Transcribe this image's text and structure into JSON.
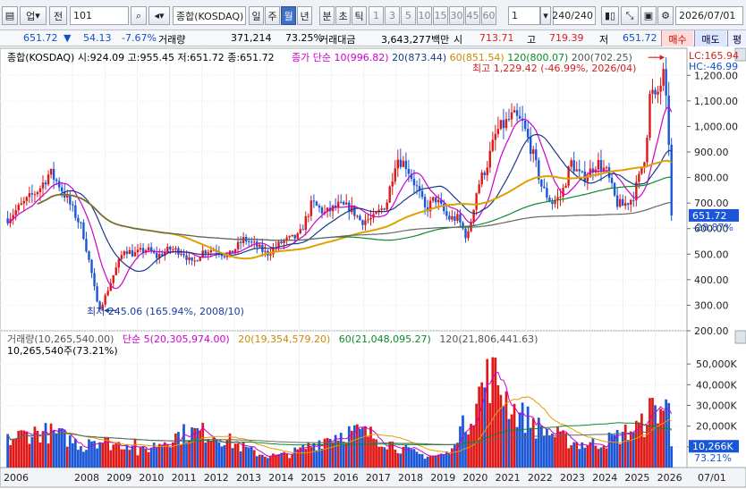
{
  "toolbar": {
    "market_select": "업",
    "prev_label": "전",
    "code_input": "101",
    "name_display": "종합(KOSDAQ)",
    "period_tabs": [
      "일",
      "주",
      "월",
      "년"
    ],
    "period_selected": "월",
    "interval_tabs": [
      "분",
      "초",
      "틱"
    ],
    "minute_buttons": [
      "1",
      "3",
      "5",
      "10",
      "15",
      "30",
      "45",
      "60"
    ],
    "unit_value": "1",
    "count_value": "240",
    "count_total": "/240",
    "date_value": "2026/07/01"
  },
  "infobar": {
    "price": "651.72",
    "change": "54.13",
    "change_pct": "-7.67%",
    "volume_label": "거래량",
    "volume": "371,214",
    "volume_ratio": "73.25%",
    "amount_label": "거래대금",
    "amount": "3,643,277백만",
    "open_label": "시",
    "open": "713.71",
    "high_label": "고",
    "high": "719.39",
    "low_label": "저",
    "low": "651.72",
    "buy_label": "매수",
    "sell_label": "매도",
    "eval_label": "평"
  },
  "price_legend": {
    "title": "종합(KOSDAQ) 시:924.09 고:955.45 저:651.72 종:651.72",
    "ma_label": "종가 단순",
    "ma10": "10(996.82)",
    "ma20": "20(873.44)",
    "ma60": "60(851.54)",
    "ma120": "120(800.07)",
    "ma200": "200(702.25)"
  },
  "annotations": {
    "high": "최고 1,229.42 (-46.99%, 2026/04)",
    "low": "최저 245.06 (165.94%, 2008/10)",
    "lc": "LC:165.94",
    "hc": "HC:-46.99",
    "last_price": "651.72",
    "last_pct": "-28.87%",
    "last_volume": "10,266K",
    "last_volume_pct": "73.21%"
  },
  "volume_legend": {
    "title": "거래량(10,265,540.00)",
    "ma_label": "단순",
    "ma5": "5(20,305,974.00)",
    "ma20": "20(19,354,579.20)",
    "ma60": "60(21,048,095.27)",
    "ma120": "120(21,806,441.63)",
    "sub": "10,265,540주(73.21%)"
  },
  "colors": {
    "up": "#e01818",
    "down": "#1a56d6",
    "ma10": "#cc00cc",
    "ma20": "#1a3a8a",
    "ma60": "#e0a000",
    "ma120": "#0a8a2a",
    "ma200": "#666666"
  },
  "chart_data": {
    "type": "candlestick",
    "x_ticks": [
      "2006",
      "2008",
      "2009",
      "2010",
      "2011",
      "2012",
      "2013",
      "2014",
      "2015",
      "2016",
      "2017",
      "2018",
      "2019",
      "2020",
      "2021",
      "2022",
      "2023",
      "2024",
      "2025",
      "2026",
      "07/01"
    ],
    "price_ticks": [
      "1,200.00",
      "1,100.00",
      "1,000.00",
      "900.00",
      "800.00",
      "700.00",
      "600.00",
      "500.00",
      "400.00",
      "300.00",
      "200.00"
    ],
    "price_range": [
      200,
      1250
    ],
    "volume_ticks": [
      "50,000K",
      "40,000K",
      "30,000K",
      "20,000K",
      "10,000K"
    ],
    "volume_range": [
      0,
      60000
    ],
    "close_anchors": [
      [
        2006.0,
        640
      ],
      [
        2006.5,
        700
      ],
      [
        2007.0,
        760
      ],
      [
        2007.3,
        820
      ],
      [
        2007.6,
        770
      ],
      [
        2007.9,
        700
      ],
      [
        2008.3,
        600
      ],
      [
        2008.6,
        420
      ],
      [
        2008.8,
        280
      ],
      [
        2009.0,
        330
      ],
      [
        2009.3,
        430
      ],
      [
        2009.6,
        520
      ],
      [
        2009.9,
        500
      ],
      [
        2010.3,
        520
      ],
      [
        2010.6,
        490
      ],
      [
        2011.0,
        520
      ],
      [
        2011.4,
        510
      ],
      [
        2011.7,
        460
      ],
      [
        2012.0,
        510
      ],
      [
        2012.4,
        520
      ],
      [
        2012.8,
        490
      ],
      [
        2013.3,
        560
      ],
      [
        2013.7,
        530
      ],
      [
        2014.0,
        500
      ],
      [
        2014.5,
        550
      ],
      [
        2015.0,
        570
      ],
      [
        2015.4,
        700
      ],
      [
        2015.8,
        660
      ],
      [
        2016.2,
        690
      ],
      [
        2016.6,
        680
      ],
      [
        2016.9,
        630
      ],
      [
        2017.3,
        640
      ],
      [
        2017.7,
        700
      ],
      [
        2018.0,
        880
      ],
      [
        2018.3,
        850
      ],
      [
        2018.7,
        740
      ],
      [
        2018.9,
        670
      ],
      [
        2019.2,
        720
      ],
      [
        2019.6,
        640
      ],
      [
        2019.9,
        640
      ],
      [
        2020.2,
        560
      ],
      [
        2020.5,
        760
      ],
      [
        2020.8,
        850
      ],
      [
        2021.1,
        980
      ],
      [
        2021.6,
        1040
      ],
      [
        2021.9,
        1010
      ],
      [
        2022.2,
        900
      ],
      [
        2022.5,
        760
      ],
      [
        2022.8,
        700
      ],
      [
        2023.1,
        730
      ],
      [
        2023.4,
        860
      ],
      [
        2023.7,
        800
      ],
      [
        2023.9,
        810
      ],
      [
        2024.2,
        860
      ],
      [
        2024.5,
        820
      ],
      [
        2024.8,
        700
      ],
      [
        2025.0,
        690
      ],
      [
        2025.3,
        720
      ],
      [
        2025.5,
        800
      ],
      [
        2025.7,
        900
      ],
      [
        2025.85,
        1150
      ],
      [
        2026.0,
        1100
      ],
      [
        2026.25,
        1200
      ],
      [
        2026.4,
        1000
      ],
      [
        2026.5,
        651.72
      ]
    ],
    "last_close": 651.72
  }
}
